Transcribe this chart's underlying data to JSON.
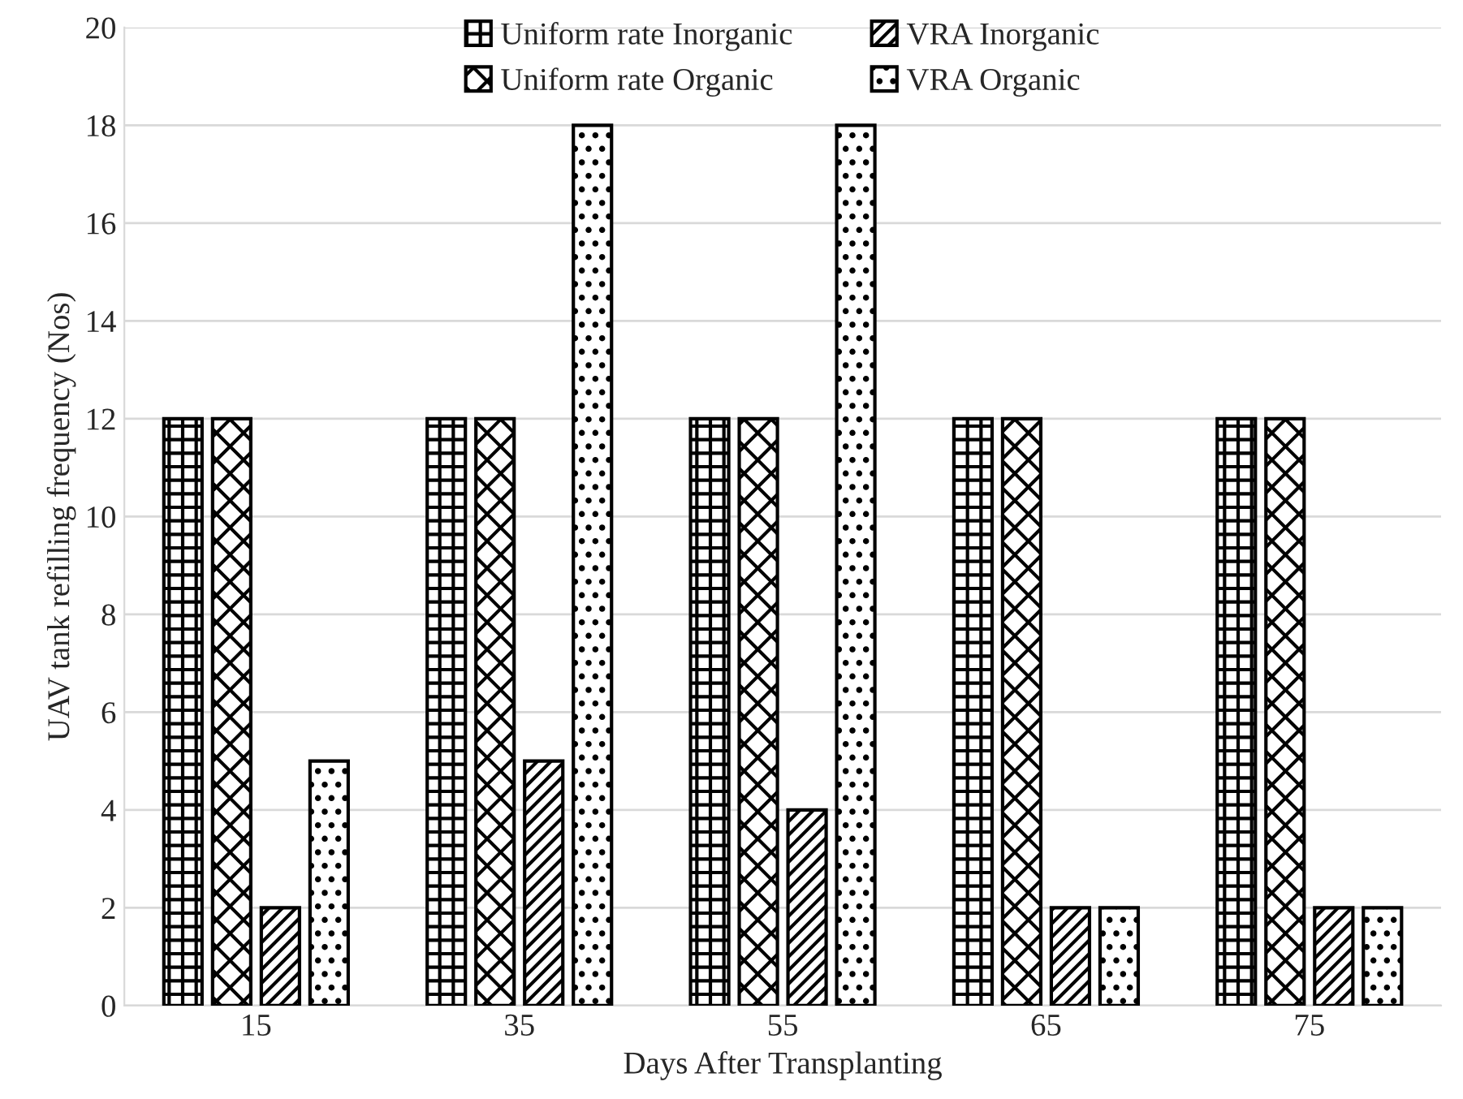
{
  "chart_data": {
    "type": "bar",
    "xlabel": "Days After Transplanting",
    "ylabel": "UAV tank refilling frequency (Nos)",
    "categories": [
      "15",
      "35",
      "55",
      "65",
      "75"
    ],
    "series": [
      {
        "name": "Uniform rate Inorganic",
        "color": "#000000",
        "values": [
          12,
          12,
          12,
          12,
          12
        ]
      },
      {
        "name": "Uniform rate Organic",
        "color": "#000000",
        "values": [
          12,
          12,
          12,
          12,
          12
        ]
      },
      {
        "name": "VRA Inorganic",
        "color": "#000000",
        "values": [
          2,
          5,
          4,
          2,
          2
        ]
      },
      {
        "name": "VRA Organic",
        "color": "#000000",
        "values": [
          5,
          18,
          18,
          2,
          2
        ]
      }
    ],
    "ylim": [
      0,
      20
    ],
    "yticks": [
      0,
      2,
      4,
      6,
      8,
      10,
      12,
      14,
      16,
      18,
      20
    ],
    "grid": "y",
    "legend": "top"
  }
}
